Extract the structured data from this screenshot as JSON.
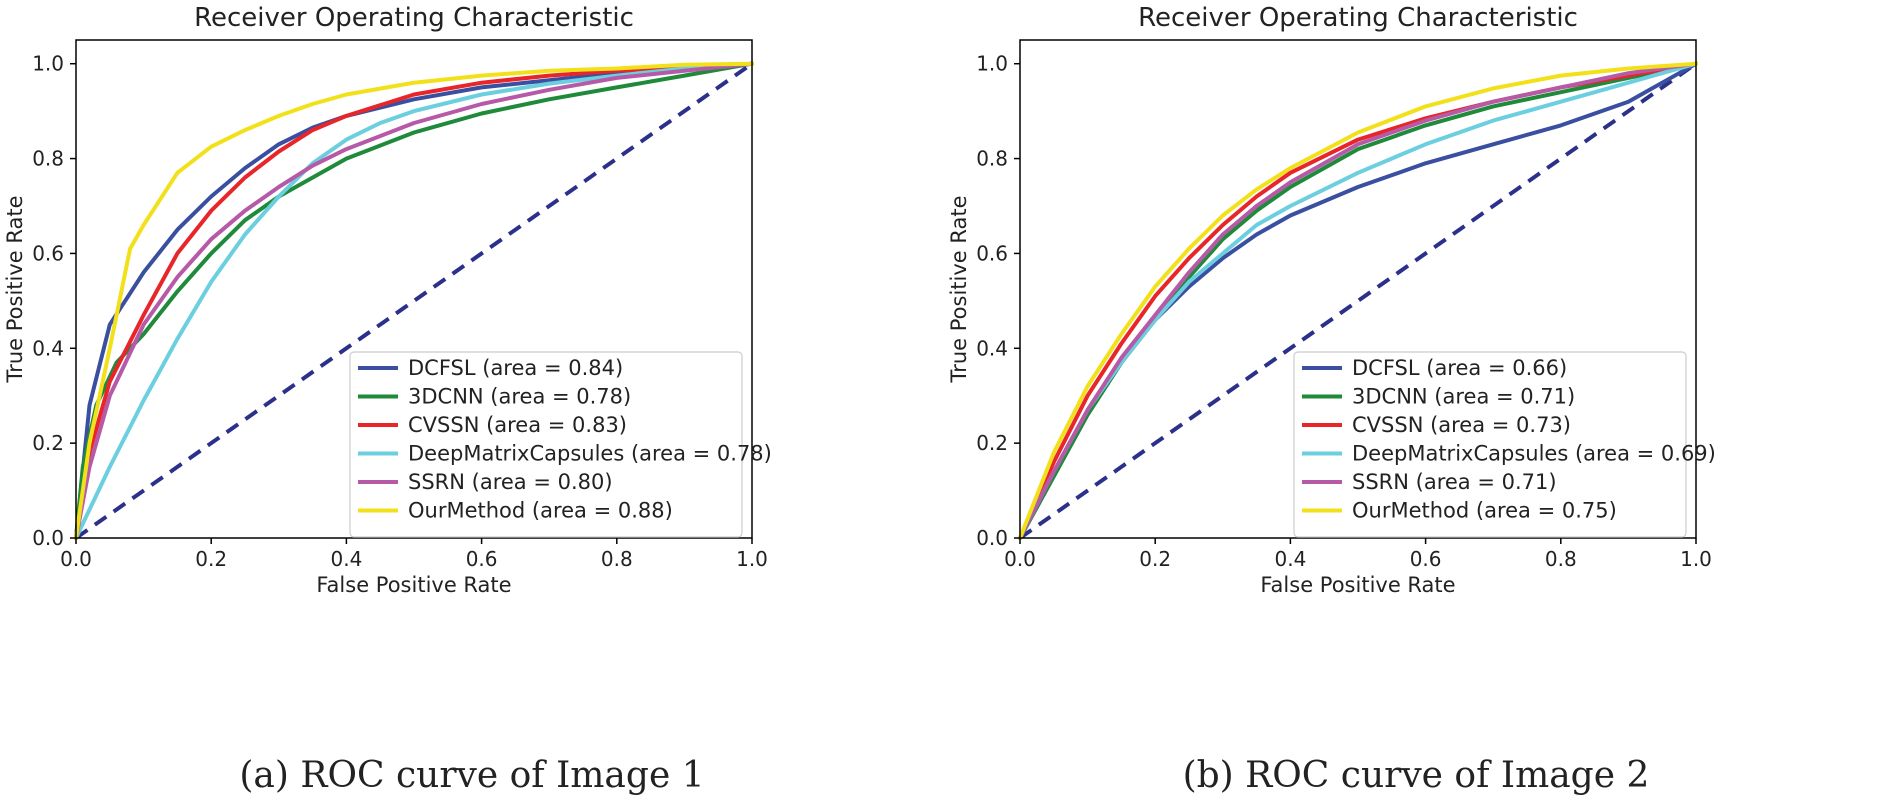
{
  "chart_data": [
    {
      "type": "line",
      "title": "Receiver Operating Characteristic",
      "xlabel": "False Positive Rate",
      "ylabel": "True Positive Rate",
      "caption": "(a) ROC curve of Image 1",
      "xlim": [
        0.0,
        1.0
      ],
      "ylim": [
        0.0,
        1.05
      ],
      "xticks": [
        "0.0",
        "0.2",
        "0.4",
        "0.6",
        "0.8",
        "1.0"
      ],
      "yticks": [
        "0.0",
        "0.2",
        "0.4",
        "0.6",
        "0.8",
        "1.0"
      ],
      "legend_position": "lower-right",
      "reference_line": {
        "x": [
          0,
          1
        ],
        "y": [
          0,
          1
        ],
        "color": "#2b318a",
        "style": "dashed"
      },
      "series": [
        {
          "name": "DCFSL",
          "label": "DCFSL (area = 0.84)",
          "color": "#3a4fa0",
          "x": [
            0,
            0.02,
            0.05,
            0.1,
            0.15,
            0.2,
            0.25,
            0.3,
            0.35,
            0.4,
            0.5,
            0.6,
            0.7,
            0.8,
            0.9,
            1.0
          ],
          "y": [
            0,
            0.28,
            0.45,
            0.56,
            0.65,
            0.72,
            0.78,
            0.83,
            0.865,
            0.89,
            0.925,
            0.95,
            0.965,
            0.98,
            0.99,
            1.0
          ]
        },
        {
          "name": "3DCNN",
          "label": "3DCNN (area = 0.78)",
          "color": "#1e8a3a",
          "x": [
            0,
            0.01,
            0.03,
            0.06,
            0.1,
            0.15,
            0.2,
            0.25,
            0.3,
            0.4,
            0.5,
            0.6,
            0.7,
            0.8,
            0.9,
            1.0
          ],
          "y": [
            0,
            0.15,
            0.28,
            0.37,
            0.43,
            0.52,
            0.6,
            0.67,
            0.72,
            0.8,
            0.855,
            0.895,
            0.925,
            0.95,
            0.975,
            1.0
          ]
        },
        {
          "name": "CVSSN",
          "label": "CVSSN (area = 0.83)",
          "color": "#e8262a",
          "x": [
            0,
            0.02,
            0.05,
            0.1,
            0.15,
            0.2,
            0.25,
            0.3,
            0.35,
            0.4,
            0.5,
            0.6,
            0.7,
            0.8,
            0.9,
            1.0
          ],
          "y": [
            0,
            0.18,
            0.33,
            0.47,
            0.6,
            0.69,
            0.76,
            0.815,
            0.86,
            0.89,
            0.935,
            0.96,
            0.975,
            0.985,
            0.99,
            1.0
          ]
        },
        {
          "name": "DeepMatrixCapsules",
          "label": "DeepMatrixCapsules (area = 0.78)",
          "color": "#6bcfdf",
          "x": [
            0,
            0.05,
            0.1,
            0.15,
            0.2,
            0.25,
            0.3,
            0.35,
            0.4,
            0.45,
            0.5,
            0.6,
            0.7,
            0.8,
            0.9,
            1.0
          ],
          "y": [
            0,
            0.15,
            0.29,
            0.42,
            0.54,
            0.64,
            0.72,
            0.79,
            0.84,
            0.875,
            0.9,
            0.935,
            0.958,
            0.975,
            0.99,
            1.0
          ]
        },
        {
          "name": "SSRN",
          "label": "SSRN (area = 0.80)",
          "color": "#b65aa8",
          "x": [
            0,
            0.02,
            0.05,
            0.1,
            0.15,
            0.2,
            0.25,
            0.3,
            0.35,
            0.4,
            0.5,
            0.6,
            0.7,
            0.8,
            0.9,
            1.0
          ],
          "y": [
            0,
            0.15,
            0.3,
            0.45,
            0.55,
            0.63,
            0.69,
            0.74,
            0.785,
            0.82,
            0.875,
            0.915,
            0.945,
            0.97,
            0.985,
            1.0
          ]
        },
        {
          "name": "OurMethod",
          "label": "OurMethod (area = 0.88)",
          "color": "#f2e11a",
          "x": [
            0,
            0.02,
            0.05,
            0.08,
            0.1,
            0.15,
            0.2,
            0.25,
            0.3,
            0.35,
            0.4,
            0.5,
            0.6,
            0.7,
            0.8,
            0.9,
            1.0
          ],
          "y": [
            0,
            0.2,
            0.4,
            0.61,
            0.66,
            0.77,
            0.825,
            0.86,
            0.89,
            0.915,
            0.935,
            0.96,
            0.975,
            0.985,
            0.99,
            0.998,
            1.0
          ]
        }
      ]
    },
    {
      "type": "line",
      "title": "Receiver Operating Characteristic",
      "xlabel": "False Positive Rate",
      "ylabel": "True Positive Rate",
      "caption": "(b) ROC curve of Image 2",
      "xlim": [
        0.0,
        1.0
      ],
      "ylim": [
        0.0,
        1.05
      ],
      "xticks": [
        "0.0",
        "0.2",
        "0.4",
        "0.6",
        "0.8",
        "1.0"
      ],
      "yticks": [
        "0.0",
        "0.2",
        "0.4",
        "0.6",
        "0.8",
        "1.0"
      ],
      "legend_position": "lower-right",
      "reference_line": {
        "x": [
          0,
          1
        ],
        "y": [
          0,
          1
        ],
        "color": "#2b318a",
        "style": "dashed"
      },
      "series": [
        {
          "name": "DCFSL",
          "label": "DCFSL (area = 0.66)",
          "color": "#3a4fa0",
          "x": [
            0,
            0.05,
            0.1,
            0.15,
            0.2,
            0.25,
            0.3,
            0.35,
            0.4,
            0.5,
            0.6,
            0.7,
            0.8,
            0.9,
            1.0
          ],
          "y": [
            0,
            0.13,
            0.26,
            0.37,
            0.46,
            0.53,
            0.59,
            0.64,
            0.68,
            0.74,
            0.79,
            0.83,
            0.87,
            0.92,
            1.0
          ]
        },
        {
          "name": "3DCNN",
          "label": "3DCNN (area = 0.71)",
          "color": "#1e8a3a",
          "x": [
            0,
            0.05,
            0.1,
            0.15,
            0.2,
            0.25,
            0.3,
            0.35,
            0.4,
            0.5,
            0.6,
            0.7,
            0.8,
            0.9,
            1.0
          ],
          "y": [
            0,
            0.13,
            0.26,
            0.37,
            0.46,
            0.55,
            0.63,
            0.69,
            0.74,
            0.82,
            0.87,
            0.91,
            0.94,
            0.97,
            1.0
          ]
        },
        {
          "name": "CVSSN",
          "label": "CVSSN (area = 0.73)",
          "color": "#e8262a",
          "x": [
            0,
            0.05,
            0.1,
            0.15,
            0.2,
            0.25,
            0.3,
            0.35,
            0.4,
            0.5,
            0.6,
            0.7,
            0.8,
            0.9,
            1.0
          ],
          "y": [
            0,
            0.16,
            0.3,
            0.41,
            0.51,
            0.59,
            0.66,
            0.72,
            0.77,
            0.84,
            0.885,
            0.92,
            0.95,
            0.975,
            1.0
          ]
        },
        {
          "name": "DeepMatrixCapsules",
          "label": "DeepMatrixCapsules (area = 0.69)",
          "color": "#6bcfdf",
          "x": [
            0,
            0.05,
            0.1,
            0.15,
            0.2,
            0.25,
            0.3,
            0.35,
            0.4,
            0.5,
            0.6,
            0.7,
            0.8,
            0.9,
            1.0
          ],
          "y": [
            0,
            0.14,
            0.27,
            0.37,
            0.46,
            0.54,
            0.6,
            0.66,
            0.7,
            0.77,
            0.83,
            0.88,
            0.92,
            0.96,
            1.0
          ]
        },
        {
          "name": "SSRN",
          "label": "SSRN (area = 0.71)",
          "color": "#b65aa8",
          "x": [
            0,
            0.05,
            0.1,
            0.15,
            0.2,
            0.25,
            0.3,
            0.35,
            0.4,
            0.5,
            0.6,
            0.7,
            0.8,
            0.9,
            1.0
          ],
          "y": [
            0,
            0.14,
            0.27,
            0.38,
            0.47,
            0.56,
            0.64,
            0.7,
            0.75,
            0.83,
            0.88,
            0.92,
            0.95,
            0.98,
            1.0
          ]
        },
        {
          "name": "OurMethod",
          "label": "OurMethod (area = 0.75)",
          "color": "#f2e11a",
          "x": [
            0,
            0.05,
            0.1,
            0.15,
            0.2,
            0.25,
            0.3,
            0.35,
            0.4,
            0.5,
            0.6,
            0.7,
            0.8,
            0.9,
            1.0
          ],
          "y": [
            0,
            0.18,
            0.32,
            0.43,
            0.53,
            0.61,
            0.68,
            0.735,
            0.78,
            0.855,
            0.91,
            0.948,
            0.975,
            0.99,
            1.0
          ]
        }
      ]
    }
  ]
}
